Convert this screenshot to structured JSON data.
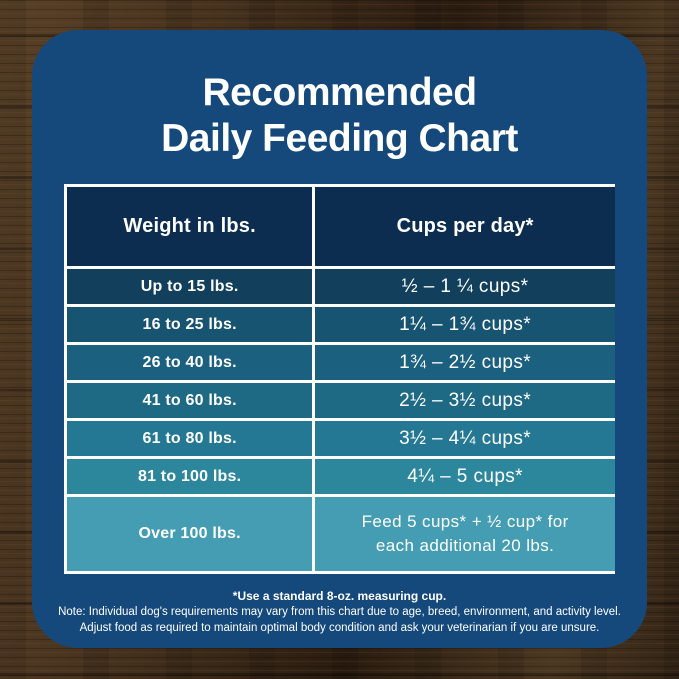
{
  "title": {
    "line1": "Recommended",
    "line2": "Daily Feeding Chart"
  },
  "colors": {
    "card_bg": "#15497B",
    "header_bg": "#0C2C50",
    "table_border": "#FFFFFF",
    "text": "#FFFFFF",
    "wood_light": "#5A4128",
    "wood_dark": "#2A1C10"
  },
  "table": {
    "headers": [
      "Weight in lbs.",
      "Cups per day*"
    ],
    "rows": [
      {
        "weight": "Up to 15 lbs.",
        "cups": "½ – 1 ¼ cups*",
        "bg": "#123F5C"
      },
      {
        "weight": "16 to 25 lbs.",
        "cups": "1¼ – 1¾  cups*",
        "bg": "#175472"
      },
      {
        "weight": "26 to 40 lbs.",
        "cups": "1¾ – 2½ cups*",
        "bg": "#1C6080"
      },
      {
        "weight": "41 to 60 lbs.",
        "cups": "2½ – 3½ cups*",
        "bg": "#1E6A85"
      },
      {
        "weight": "61 to 80 lbs.",
        "cups": "3½ – 4¼ cups*",
        "bg": "#247893"
      },
      {
        "weight": "81 to 100 lbs.",
        "cups": "4¼ – 5 cups*",
        "bg": "#2C879D"
      },
      {
        "weight": "Over 100 lbs.",
        "cups_line1": "Feed 5 cups* + ½ cup* for",
        "cups_line2": "each additional 20 lbs.",
        "bg": "#449DB2"
      }
    ]
  },
  "footnotes": {
    "measuring_cup": "*Use a standard 8-oz. measuring cup.",
    "note_line1": "Note: Individual dog's requirements may vary from this chart due to age, breed, environment, and activity level.",
    "note_line2": "Adjust food as required to maintain optimal body condition and ask your veterinarian if you are unsure."
  },
  "chart_data": {
    "type": "table",
    "title": "Recommended Daily Feeding Chart",
    "columns": [
      "Weight in lbs.",
      "Cups per day*"
    ],
    "rows": [
      [
        "Up to 15 lbs.",
        "½ – 1 ¼ cups*"
      ],
      [
        "16 to 25 lbs.",
        "1¼ – 1¾ cups*"
      ],
      [
        "26 to 40 lbs.",
        "1¾ – 2½ cups*"
      ],
      [
        "41 to 60 lbs.",
        "2½ – 3½ cups*"
      ],
      [
        "61 to 80 lbs.",
        "3½ – 4¼ cups*"
      ],
      [
        "81 to 100 lbs.",
        "4¼ – 5 cups*"
      ],
      [
        "Over 100 lbs.",
        "Feed 5 cups* + ½ cup* for each additional 20 lbs."
      ]
    ],
    "footnote": "*Use a standard 8-oz. measuring cup.",
    "row_colors": [
      "#123F5C",
      "#175472",
      "#1C6080",
      "#1E6A85",
      "#247893",
      "#2C879D",
      "#449DB2"
    ]
  }
}
